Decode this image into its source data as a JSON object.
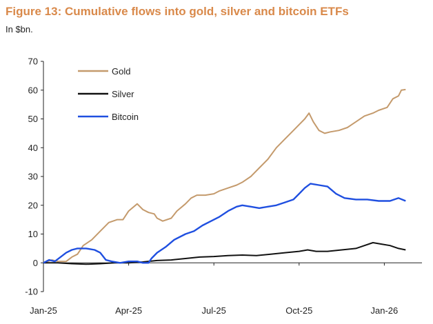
{
  "chart_data": {
    "type": "line",
    "title": "Figure 13: Cumulative flows into gold, silver and bitcoin ETFs",
    "subtitle": "In $bn.",
    "xlabel": "",
    "ylabel": "",
    "ylim": [
      -10,
      70
    ],
    "yticks": [
      "70",
      "60",
      "50",
      "40",
      "30",
      "20",
      "10",
      "0",
      "-10"
    ],
    "xticks": [
      "Jan-25",
      "Apr-25",
      "Jul-25",
      "Oct-25",
      "Jan-26"
    ],
    "grid": false,
    "legend_position": "top-left",
    "series": [
      {
        "name": "Gold",
        "color": "#C49A6C",
        "points": [
          [
            0,
            0
          ],
          [
            0.3,
            1
          ],
          [
            0.5,
            0.5
          ],
          [
            0.8,
            0.5
          ],
          [
            1.0,
            2
          ],
          [
            1.2,
            3
          ],
          [
            1.4,
            6
          ],
          [
            1.7,
            8
          ],
          [
            2.0,
            11
          ],
          [
            2.3,
            14
          ],
          [
            2.6,
            15
          ],
          [
            2.8,
            15
          ],
          [
            3.0,
            18
          ],
          [
            3.3,
            20.5
          ],
          [
            3.5,
            18.5
          ],
          [
            3.7,
            17.5
          ],
          [
            3.9,
            17
          ],
          [
            4.0,
            15.5
          ],
          [
            4.2,
            14.5
          ],
          [
            4.5,
            15.5
          ],
          [
            4.7,
            18
          ],
          [
            5.0,
            20.5
          ],
          [
            5.2,
            22.5
          ],
          [
            5.4,
            23.5
          ],
          [
            5.7,
            23.5
          ],
          [
            6.0,
            24
          ],
          [
            6.2,
            25
          ],
          [
            6.5,
            26
          ],
          [
            6.8,
            27
          ],
          [
            7.0,
            28
          ],
          [
            7.3,
            30
          ],
          [
            7.6,
            33
          ],
          [
            7.9,
            36
          ],
          [
            8.2,
            40
          ],
          [
            8.5,
            43
          ],
          [
            8.8,
            46
          ],
          [
            9.0,
            48
          ],
          [
            9.2,
            50
          ],
          [
            9.35,
            52
          ],
          [
            9.5,
            49
          ],
          [
            9.7,
            46
          ],
          [
            9.9,
            45
          ],
          [
            10.1,
            45.5
          ],
          [
            10.4,
            46
          ],
          [
            10.7,
            47
          ],
          [
            11.0,
            49
          ],
          [
            11.3,
            51
          ],
          [
            11.6,
            52
          ],
          [
            11.8,
            53
          ],
          [
            12.1,
            54
          ],
          [
            12.3,
            57
          ],
          [
            12.5,
            58
          ],
          [
            12.6,
            60
          ],
          [
            12.75,
            60.2
          ]
        ]
      },
      {
        "name": "Silver",
        "color": "#111111",
        "points": [
          [
            0,
            0
          ],
          [
            0.5,
            0
          ],
          [
            1.0,
            -0.3
          ],
          [
            1.5,
            -0.5
          ],
          [
            2.0,
            -0.3
          ],
          [
            2.5,
            0
          ],
          [
            3.0,
            0
          ],
          [
            3.5,
            0.3
          ],
          [
            4.0,
            0.8
          ],
          [
            4.5,
            1
          ],
          [
            5.0,
            1.5
          ],
          [
            5.5,
            2
          ],
          [
            6.0,
            2.2
          ],
          [
            6.5,
            2.5
          ],
          [
            7.0,
            2.7
          ],
          [
            7.5,
            2.5
          ],
          [
            8.0,
            3
          ],
          [
            8.5,
            3.5
          ],
          [
            9.0,
            4
          ],
          [
            9.3,
            4.5
          ],
          [
            9.6,
            4
          ],
          [
            10.0,
            4
          ],
          [
            10.5,
            4.5
          ],
          [
            11.0,
            5
          ],
          [
            11.3,
            6
          ],
          [
            11.6,
            7
          ],
          [
            11.9,
            6.5
          ],
          [
            12.2,
            6
          ],
          [
            12.5,
            5
          ],
          [
            12.75,
            4.5
          ]
        ]
      },
      {
        "name": "Bitcoin",
        "color": "#1F4FE0",
        "points": [
          [
            0,
            0
          ],
          [
            0.2,
            1
          ],
          [
            0.4,
            0.5
          ],
          [
            0.6,
            2
          ],
          [
            0.8,
            3.5
          ],
          [
            1.0,
            4.5
          ],
          [
            1.2,
            5
          ],
          [
            1.5,
            5
          ],
          [
            1.8,
            4.5
          ],
          [
            2.0,
            3.5
          ],
          [
            2.2,
            1
          ],
          [
            2.4,
            0.5
          ],
          [
            2.7,
            0
          ],
          [
            3.0,
            0.5
          ],
          [
            3.3,
            0.5
          ],
          [
            3.5,
            0
          ],
          [
            3.7,
            0
          ],
          [
            3.8,
            1.5
          ],
          [
            4.0,
            3.5
          ],
          [
            4.3,
            5.5
          ],
          [
            4.6,
            8
          ],
          [
            5.0,
            10
          ],
          [
            5.3,
            11
          ],
          [
            5.6,
            13
          ],
          [
            5.9,
            14.5
          ],
          [
            6.2,
            16
          ],
          [
            6.5,
            18
          ],
          [
            6.8,
            19.5
          ],
          [
            7.0,
            20
          ],
          [
            7.3,
            19.5
          ],
          [
            7.6,
            19
          ],
          [
            7.9,
            19.5
          ],
          [
            8.2,
            20
          ],
          [
            8.5,
            21
          ],
          [
            8.8,
            22
          ],
          [
            9.0,
            24
          ],
          [
            9.2,
            26
          ],
          [
            9.4,
            27.5
          ],
          [
            9.7,
            27
          ],
          [
            10.0,
            26.5
          ],
          [
            10.3,
            24
          ],
          [
            10.6,
            22.5
          ],
          [
            11.0,
            22
          ],
          [
            11.4,
            22
          ],
          [
            11.8,
            21.5
          ],
          [
            12.2,
            21.5
          ],
          [
            12.5,
            22.5
          ],
          [
            12.75,
            21.5
          ]
        ]
      }
    ]
  }
}
